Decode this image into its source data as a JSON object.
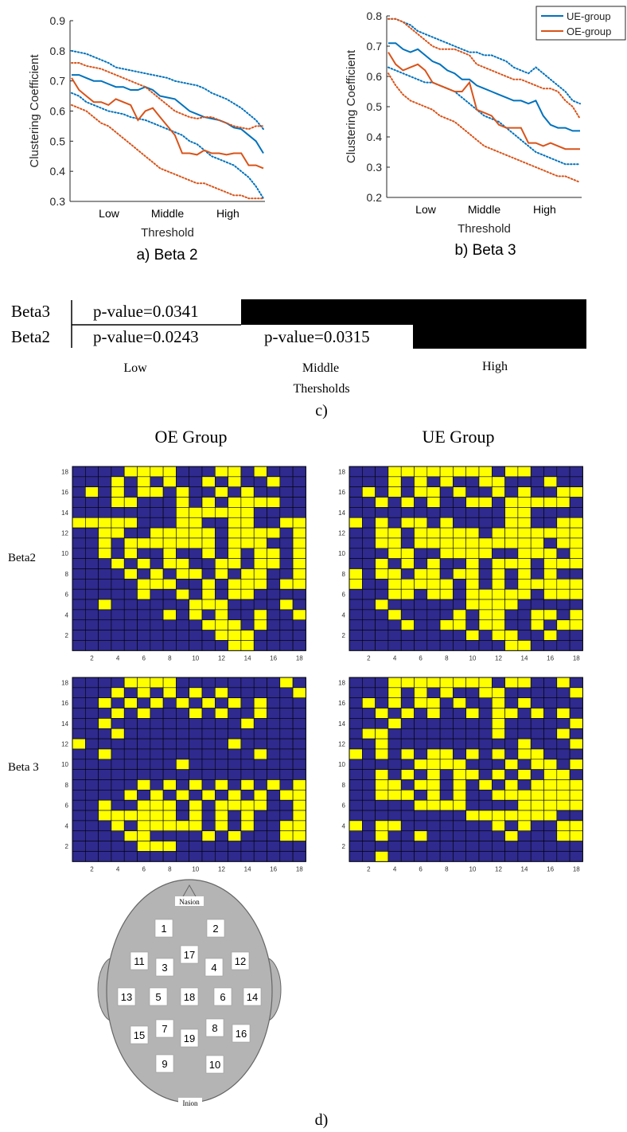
{
  "chart_data": [
    {
      "type": "line",
      "caption": "a) Beta 2",
      "xlabel": "Threshold",
      "ylabel": "Clustering Coefficient",
      "ylim": [
        0.3,
        0.9
      ],
      "yticks": [
        "0.3",
        "0.4",
        "0.5",
        "0.6",
        "0.7",
        "0.8",
        "0.9"
      ],
      "xticklabels": [
        "Low",
        "Middle",
        "High"
      ],
      "series": [
        {
          "name": "UE-group",
          "style": "solid",
          "color": "#0072BD",
          "values": [
            0.72,
            0.72,
            0.71,
            0.7,
            0.7,
            0.69,
            0.68,
            0.68,
            0.67,
            0.67,
            0.68,
            0.67,
            0.65,
            0.645,
            0.64,
            0.62,
            0.6,
            0.59,
            0.58,
            0.575,
            0.57,
            0.56,
            0.545,
            0.54,
            0.52,
            0.5,
            0.46
          ]
        },
        {
          "name": "UE-group upper",
          "style": "dotted",
          "color": "#0072BD",
          "values": [
            0.8,
            0.795,
            0.79,
            0.78,
            0.77,
            0.76,
            0.745,
            0.74,
            0.735,
            0.73,
            0.725,
            0.72,
            0.715,
            0.71,
            0.7,
            0.695,
            0.69,
            0.685,
            0.675,
            0.66,
            0.65,
            0.64,
            0.625,
            0.61,
            0.59,
            0.57,
            0.54
          ]
        },
        {
          "name": "UE-group lower",
          "style": "dotted",
          "color": "#0072BD",
          "values": [
            0.66,
            0.65,
            0.63,
            0.62,
            0.61,
            0.6,
            0.595,
            0.59,
            0.58,
            0.575,
            0.57,
            0.56,
            0.55,
            0.54,
            0.53,
            0.52,
            0.5,
            0.49,
            0.47,
            0.45,
            0.44,
            0.43,
            0.42,
            0.4,
            0.38,
            0.35,
            0.31
          ]
        },
        {
          "name": "OE-group",
          "style": "solid",
          "color": "#D95319",
          "values": [
            0.71,
            0.67,
            0.65,
            0.63,
            0.63,
            0.62,
            0.64,
            0.63,
            0.62,
            0.57,
            0.6,
            0.61,
            0.58,
            0.55,
            0.52,
            0.46,
            0.46,
            0.455,
            0.47,
            0.46,
            0.46,
            0.455,
            0.46,
            0.46,
            0.42,
            0.42,
            0.41
          ]
        },
        {
          "name": "OE-group upper",
          "style": "dotted",
          "color": "#D95319",
          "values": [
            0.76,
            0.76,
            0.75,
            0.745,
            0.74,
            0.73,
            0.72,
            0.71,
            0.7,
            0.69,
            0.68,
            0.66,
            0.64,
            0.62,
            0.6,
            0.59,
            0.58,
            0.575,
            0.58,
            0.58,
            0.57,
            0.56,
            0.55,
            0.545,
            0.54,
            0.55,
            0.55
          ]
        },
        {
          "name": "OE-group lower",
          "style": "dotted",
          "color": "#D95319",
          "values": [
            0.62,
            0.61,
            0.6,
            0.58,
            0.56,
            0.55,
            0.53,
            0.51,
            0.49,
            0.47,
            0.45,
            0.43,
            0.41,
            0.4,
            0.39,
            0.38,
            0.37,
            0.36,
            0.36,
            0.35,
            0.34,
            0.33,
            0.32,
            0.32,
            0.31,
            0.31,
            0.31
          ]
        }
      ]
    },
    {
      "type": "line",
      "caption": "b) Beta 3",
      "xlabel": "Threshold",
      "ylabel": "Clustering Coefficient",
      "ylim": [
        0.2,
        0.8
      ],
      "yticks": [
        "0.2",
        "0.3",
        "0.4",
        "0.5",
        "0.6",
        "0.7",
        "0.8"
      ],
      "xticklabels": [
        "Low",
        "Middle",
        "High"
      ],
      "legend": {
        "position": "top-right",
        "entries": [
          "UE-group",
          "OE-group"
        ]
      },
      "series": [
        {
          "name": "UE-group",
          "style": "solid",
          "color": "#0072BD",
          "values": [
            0.71,
            0.71,
            0.69,
            0.68,
            0.69,
            0.67,
            0.65,
            0.64,
            0.62,
            0.61,
            0.59,
            0.59,
            0.57,
            0.56,
            0.55,
            0.54,
            0.53,
            0.52,
            0.52,
            0.51,
            0.52,
            0.47,
            0.44,
            0.43,
            0.43,
            0.42,
            0.42
          ]
        },
        {
          "name": "UE-group upper",
          "style": "dotted",
          "color": "#0072BD",
          "values": [
            0.79,
            0.79,
            0.78,
            0.77,
            0.75,
            0.74,
            0.73,
            0.72,
            0.71,
            0.7,
            0.69,
            0.68,
            0.68,
            0.67,
            0.67,
            0.66,
            0.65,
            0.63,
            0.62,
            0.61,
            0.63,
            0.61,
            0.59,
            0.57,
            0.55,
            0.52,
            0.51
          ]
        },
        {
          "name": "UE-group lower",
          "style": "dotted",
          "color": "#0072BD",
          "values": [
            0.63,
            0.62,
            0.61,
            0.6,
            0.59,
            0.58,
            0.58,
            0.57,
            0.56,
            0.55,
            0.53,
            0.51,
            0.49,
            0.47,
            0.46,
            0.45,
            0.43,
            0.41,
            0.39,
            0.37,
            0.35,
            0.34,
            0.33,
            0.32,
            0.31,
            0.31,
            0.31
          ]
        },
        {
          "name": "OE-group",
          "style": "solid",
          "color": "#D95319",
          "values": [
            0.68,
            0.64,
            0.62,
            0.63,
            0.64,
            0.62,
            0.58,
            0.57,
            0.56,
            0.55,
            0.55,
            0.58,
            0.49,
            0.48,
            0.47,
            0.44,
            0.43,
            0.43,
            0.43,
            0.38,
            0.38,
            0.37,
            0.38,
            0.37,
            0.36,
            0.36,
            0.36
          ]
        },
        {
          "name": "OE-group upper",
          "style": "dotted",
          "color": "#D95319",
          "values": [
            0.79,
            0.79,
            0.78,
            0.76,
            0.74,
            0.72,
            0.7,
            0.69,
            0.69,
            0.69,
            0.68,
            0.67,
            0.64,
            0.63,
            0.62,
            0.61,
            0.6,
            0.59,
            0.59,
            0.58,
            0.57,
            0.56,
            0.56,
            0.55,
            0.52,
            0.5,
            0.46
          ]
        },
        {
          "name": "OE-group lower",
          "style": "dotted",
          "color": "#D95319",
          "values": [
            0.61,
            0.57,
            0.54,
            0.52,
            0.51,
            0.5,
            0.49,
            0.47,
            0.46,
            0.45,
            0.43,
            0.41,
            0.39,
            0.37,
            0.36,
            0.35,
            0.34,
            0.33,
            0.32,
            0.31,
            0.3,
            0.29,
            0.28,
            0.27,
            0.27,
            0.26,
            0.25
          ]
        }
      ]
    }
  ],
  "panel_c": {
    "rows": [
      {
        "label": "Beta3",
        "cells": [
          {
            "text": "p-value=0.0341"
          },
          {
            "text": ""
          }
        ]
      },
      {
        "label": "Beta2",
        "cells": [
          {
            "text": "p-value=0.0243"
          },
          {
            "text": "p-value=0.0315"
          },
          {
            "text": ""
          }
        ]
      }
    ],
    "categories": [
      "Low",
      "Middle",
      "High"
    ],
    "xlabel": "Thersholds",
    "caption": "c)"
  },
  "panel_d": {
    "col_titles": [
      "OE Group",
      "UE Group"
    ],
    "row_labels": [
      "Beta2",
      "Beta 3"
    ],
    "axis_ticks": [
      "2",
      "4",
      "6",
      "8",
      "10",
      "12",
      "14",
      "16",
      "18"
    ],
    "colors": {
      "on": "#FFFF00",
      "off": "#2E2A8E"
    },
    "matrices": {
      "oe_beta2": [
        "000011110001101000",
        "000101010010100100",
        "010101101001010000",
        "000110001010111100",
        "000000001111110000",
        "111110001100110011",
        "001100111110111101",
        "001011111110111001",
        "001010010010101101",
        "000101011001101101",
        "000010101101011001",
        "000001110010111011",
        "000001001010110000",
        "001000000111000010",
        "000000010101001001",
        "000000000011101000",
        "000000000001110000",
        "000000000000110000"
      ],
      "ue_beta2": [
        "000111111110110000",
        "000101010011000100",
        "010101101001010011",
        "001010100110111110",
        "000000000000110000",
        "101011010000110011",
        "001101111101111111",
        "001101111111111011",
        "000110011110011101",
        "001010100101110111",
        "101101101101010100",
        "100111110101011111",
        "000110110111110111",
        "001000000111100000",
        "000100001011001101",
        "000010011011001011",
        "000000000101100100",
        "000000000000110000"
      ],
      "oe_beta3": [
        "000011110000000010",
        "000101010101000001",
        "001010101010101000",
        "000101000101001000",
        "001000000000010000",
        "000100000000000000",
        "100000000000100000",
        "001000000000001000",
        "000000001000000000",
        "000000000000000000",
        "000001010101010101",
        "000010101010101011",
        "001001110101111001",
        "001111110101010001",
        "000101111101010011",
        "000011000010100011",
        "000001110000000000",
        "000000000000000000"
      ],
      "ue_beta3": [
        "000111111110110010",
        "000101010011000001",
        "010101101001010000",
        "001010100101101010",
        "000100000001000001",
        "011000000001000010",
        "001000000000010001",
        "101010110101011000",
        "000001111000101101",
        "001010101101010110",
        "001101101010101111",
        "001110101001111111",
        "000001111000011111",
        "000000000111111100",
        "101100000001010011",
        "001001000000100011",
        "000000000000000000",
        "001000000000000000"
      ]
    },
    "head": {
      "nasion": "Nasion",
      "inion": "Inion",
      "electrodes": [
        "1",
        "2",
        "11",
        "3",
        "17",
        "4",
        "12",
        "13",
        "5",
        "18",
        "6",
        "14",
        "15",
        "7",
        "19",
        "8",
        "16",
        "9",
        "10"
      ]
    },
    "caption": "d)"
  }
}
